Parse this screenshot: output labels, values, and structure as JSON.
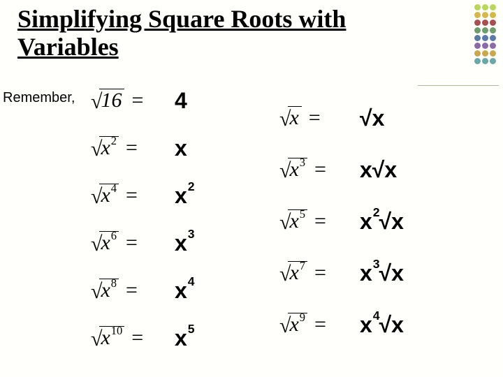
{
  "title_line1": "Simplifying Square Roots with",
  "title_line2": "Variables",
  "remember": "Remember,",
  "dot_colors": [
    "#b8d65a",
    "#d6b84a",
    "#a85050",
    "#6b9e6b",
    "#5a7aa8",
    "#8a6aa8",
    "#c8a84a",
    "#6aa8a8"
  ],
  "left": [
    {
      "radicand_base": "16",
      "radicand_exp": "",
      "result_base": "4",
      "result_exp": "",
      "result_tail": ""
    },
    {
      "radicand_base": "x",
      "radicand_exp": "2",
      "result_base": "x",
      "result_exp": "",
      "result_tail": ""
    },
    {
      "radicand_base": "x",
      "radicand_exp": "4",
      "result_base": "x",
      "result_exp": "2",
      "result_tail": ""
    },
    {
      "radicand_base": "x",
      "radicand_exp": "6",
      "result_base": "x",
      "result_exp": "3",
      "result_tail": ""
    },
    {
      "radicand_base": "x",
      "radicand_exp": "8",
      "result_base": "x",
      "result_exp": "4",
      "result_tail": ""
    },
    {
      "radicand_base": "x",
      "radicand_exp": "10",
      "result_base": "x",
      "result_exp": "5",
      "result_tail": ""
    }
  ],
  "right": [
    {
      "radicand_base": "x",
      "radicand_exp": "",
      "result_base": "",
      "result_exp": "",
      "result_tail": "√x"
    },
    {
      "radicand_base": "x",
      "radicand_exp": "3",
      "result_base": "x",
      "result_exp": "",
      "result_tail": "√x"
    },
    {
      "radicand_base": "x",
      "radicand_exp": "5",
      "result_base": "x",
      "result_exp": "2",
      "result_tail": "√x"
    },
    {
      "radicand_base": "x",
      "radicand_exp": "7",
      "result_base": "x",
      "result_exp": "3",
      "result_tail": "√x"
    },
    {
      "radicand_base": "x",
      "radicand_exp": "9",
      "result_base": "x",
      "result_exp": "4",
      "result_tail": "√x"
    }
  ]
}
